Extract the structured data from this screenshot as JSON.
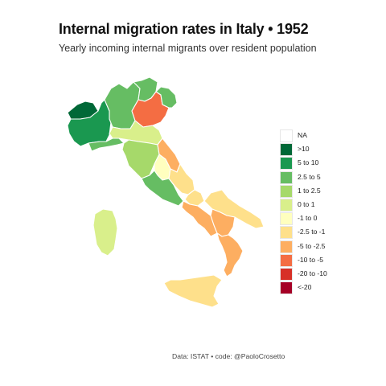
{
  "title": "Internal migration rates in Italy • 1952",
  "subtitle": "Yearly incoming internal migrants over resident population",
  "caption": "Data: ISTAT  •  code: @PaoloCrosetto",
  "legend": {
    "items": [
      {
        "label": "NA",
        "color": "#ffffff"
      },
      {
        "label": ">10",
        "color": "#006837"
      },
      {
        "label": "5 to 10",
        "color": "#1a9850"
      },
      {
        "label": "2.5 to 5",
        "color": "#66bd63"
      },
      {
        "label": "1 to 2.5",
        "color": "#a6d96a"
      },
      {
        "label": "0 to 1",
        "color": "#d9ef8b"
      },
      {
        "label": "-1 to 0",
        "color": "#ffffbf"
      },
      {
        "label": "-2.5 to -1",
        "color": "#fee08b"
      },
      {
        "label": "-5 to -2.5",
        "color": "#fdae61"
      },
      {
        "label": "-10 to -5",
        "color": "#f46d43"
      },
      {
        "label": "-20 to -10",
        "color": "#d73027"
      },
      {
        "label": "<-20",
        "color": "#a50026"
      }
    ]
  },
  "regions": [
    {
      "name": "Valle d'Aosta",
      "class": ">10",
      "color": "#006837"
    },
    {
      "name": "Piemonte",
      "class": "5 to 10",
      "color": "#1a9850"
    },
    {
      "name": "Lombardia",
      "class": "2.5 to 5",
      "color": "#66bd63"
    },
    {
      "name": "Trentino-Alto Adige",
      "class": "2.5 to 5",
      "color": "#66bd63"
    },
    {
      "name": "Veneto",
      "class": "-10 to -5",
      "color": "#f46d43"
    },
    {
      "name": "Friuli-Venezia Giulia",
      "class": "2.5 to 5",
      "color": "#66bd63"
    },
    {
      "name": "Liguria",
      "class": "2.5 to 5",
      "color": "#66bd63"
    },
    {
      "name": "Emilia-Romagna",
      "class": "0 to 1",
      "color": "#d9ef8b"
    },
    {
      "name": "Toscana",
      "class": "1 to 2.5",
      "color": "#a6d96a"
    },
    {
      "name": "Umbria",
      "class": "-1 to 0",
      "color": "#ffffbf"
    },
    {
      "name": "Marche",
      "class": "-5 to -2.5",
      "color": "#fdae61"
    },
    {
      "name": "Lazio",
      "class": "2.5 to 5",
      "color": "#66bd63"
    },
    {
      "name": "Abruzzo",
      "class": "-2.5 to -1",
      "color": "#fee08b"
    },
    {
      "name": "Molise",
      "class": "-2.5 to -1",
      "color": "#fee08b"
    },
    {
      "name": "Campania",
      "class": "-5 to -2.5",
      "color": "#fdae61"
    },
    {
      "name": "Puglia",
      "class": "-2.5 to -1",
      "color": "#fee08b"
    },
    {
      "name": "Basilicata",
      "class": "-5 to -2.5",
      "color": "#fdae61"
    },
    {
      "name": "Calabria",
      "class": "-5 to -2.5",
      "color": "#fdae61"
    },
    {
      "name": "Sicilia",
      "class": "-2.5 to -1",
      "color": "#fee08b"
    },
    {
      "name": "Sardegna",
      "class": "0 to 1",
      "color": "#d9ef8b"
    }
  ]
}
